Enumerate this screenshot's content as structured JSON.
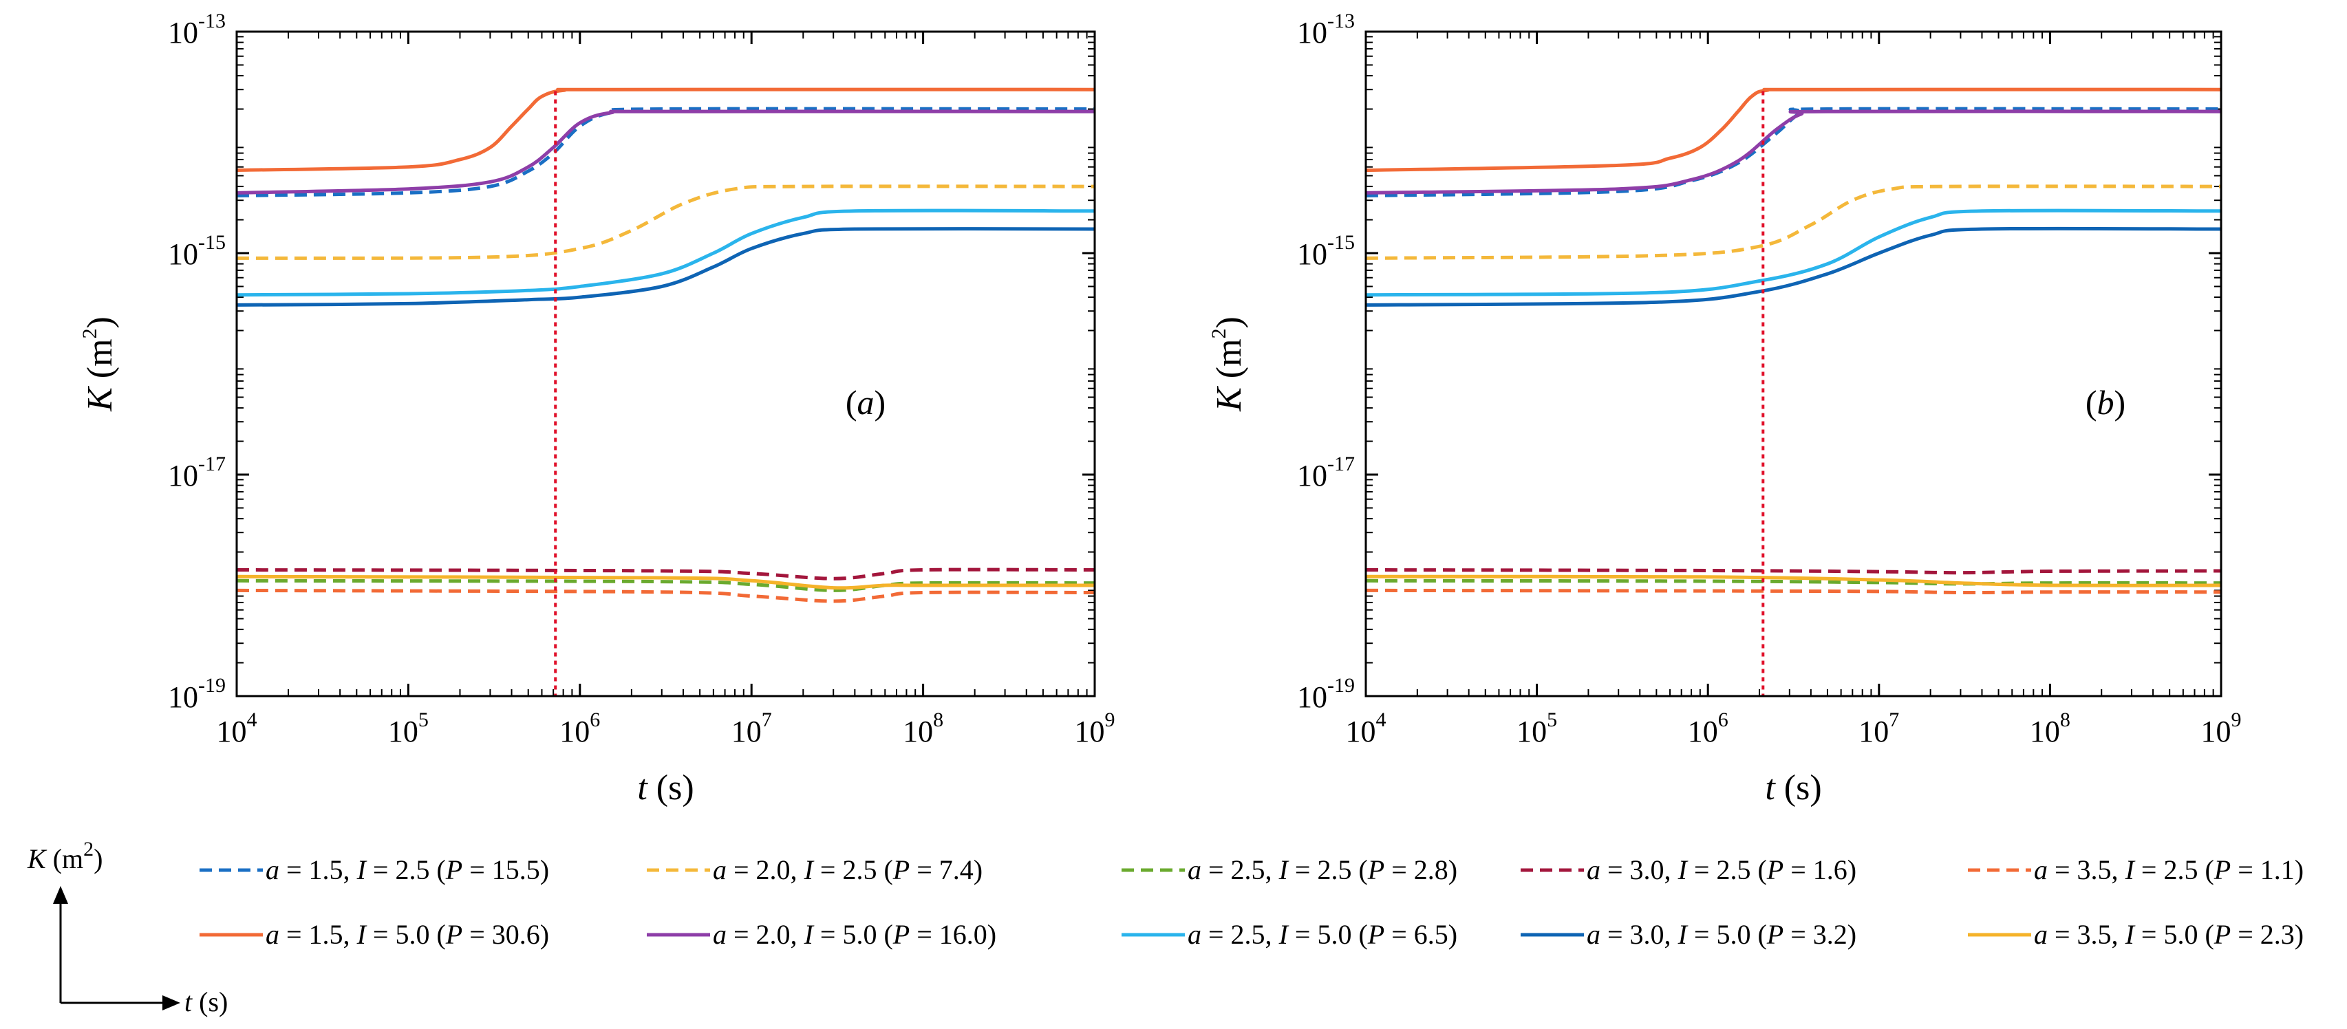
{
  "chart_data": [
    {
      "type": "line",
      "panel_label": "a",
      "xscale": "log",
      "yscale": "log",
      "xlim": [
        10000,
        1000000000
      ],
      "ylim": [
        1e-19,
        1e-13
      ],
      "xlabel": "t",
      "xlabel_unit": "(s)",
      "ylabel": "K",
      "ylabel_unit_open": "(m",
      "ylabel_unit_sup": "2",
      "ylabel_unit_close": ")",
      "x_ticks": [
        {
          "base": "10",
          "exp": "4"
        },
        {
          "base": "10",
          "exp": "5"
        },
        {
          "base": "10",
          "exp": "6"
        },
        {
          "base": "10",
          "exp": "7"
        },
        {
          "base": "10",
          "exp": "8"
        },
        {
          "base": "10",
          "exp": "9"
        }
      ],
      "y_ticks": [
        {
          "base": "10",
          "exp": "-19"
        },
        {
          "base": "10",
          "exp": "-17"
        },
        {
          "base": "10",
          "exp": "-15"
        },
        {
          "base": "10",
          "exp": "-13"
        }
      ],
      "vline_t": 720000,
      "series": [
        {
          "key": "a15_I25",
          "points": [
            [
              10000.0,
              3.3e-15
            ],
            [
              100000.0,
              3.5e-15
            ],
            [
              300000.0,
              4e-15
            ],
            [
              500000.0,
              5.5e-15
            ],
            [
              700000.0,
              8e-15
            ],
            [
              1000000.0,
              1.4e-14
            ],
            [
              1500000.0,
              1.85e-14
            ],
            [
              3000000.0,
              2e-14
            ],
            [
              1000000000.0,
              2e-14
            ]
          ]
        },
        {
          "key": "a20_I25",
          "points": [
            [
              10000.0,
              9e-16
            ],
            [
              300000.0,
              9.2e-16
            ],
            [
              1000000.0,
              1.1e-15
            ],
            [
              2000000.0,
              1.6e-15
            ],
            [
              4000000.0,
              2.8e-15
            ],
            [
              8000000.0,
              3.8e-15
            ],
            [
              20000000.0,
              4e-15
            ],
            [
              1000000000.0,
              4e-15
            ]
          ]
        },
        {
          "key": "a25_I25",
          "points": [
            [
              10000.0,
              1.1e-18
            ],
            [
              3000000.0,
              1.08e-18
            ],
            [
              10000000.0,
              1.02e-18
            ],
            [
              30000000.0,
              9e-19
            ],
            [
              60000000.0,
              1e-18
            ],
            [
              100000000.0,
              1.05e-18
            ],
            [
              1000000000.0,
              1.05e-18
            ]
          ]
        },
        {
          "key": "a30_I25",
          "points": [
            [
              10000.0,
              1.38e-18
            ],
            [
              3000000.0,
              1.35e-18
            ],
            [
              10000000.0,
              1.28e-18
            ],
            [
              30000000.0,
              1.15e-18
            ],
            [
              60000000.0,
              1.28e-18
            ],
            [
              100000000.0,
              1.38e-18
            ],
            [
              1000000000.0,
              1.38e-18
            ]
          ]
        },
        {
          "key": "a35_I25",
          "points": [
            [
              10000.0,
              9e-19
            ],
            [
              3000000.0,
              8.7e-19
            ],
            [
              10000000.0,
              8e-19
            ],
            [
              30000000.0,
              7.2e-19
            ],
            [
              60000000.0,
              8e-19
            ],
            [
              100000000.0,
              8.6e-19
            ],
            [
              1000000000.0,
              8.6e-19
            ]
          ]
        },
        {
          "key": "a15_I50",
          "points": [
            [
              10000.0,
              5.6e-15
            ],
            [
              100000.0,
              6e-15
            ],
            [
              200000.0,
              7e-15
            ],
            [
              300000.0,
              9e-15
            ],
            [
              400000.0,
              1.4e-14
            ],
            [
              500000.0,
              2e-14
            ],
            [
              600000.0,
              2.6e-14
            ],
            [
              800000.0,
              2.95e-14
            ],
            [
              1500000.0,
              3e-14
            ],
            [
              1000000000.0,
              3e-14
            ]
          ]
        },
        {
          "key": "a20_I50",
          "points": [
            [
              10000.0,
              3.5e-15
            ],
            [
              100000.0,
              3.8e-15
            ],
            [
              300000.0,
              4.4e-15
            ],
            [
              500000.0,
              6e-15
            ],
            [
              700000.0,
              9e-15
            ],
            [
              1000000.0,
              1.5e-14
            ],
            [
              1500000.0,
              1.85e-14
            ],
            [
              3000000.0,
              1.9e-14
            ],
            [
              1000000000.0,
              1.9e-14
            ]
          ]
        },
        {
          "key": "a25_I50",
          "points": [
            [
              10000.0,
              4.2e-16
            ],
            [
              100000.0,
              4.3e-16
            ],
            [
              500000.0,
              4.6e-16
            ],
            [
              1000000.0,
              5e-16
            ],
            [
              3000000.0,
              6.5e-16
            ],
            [
              6000000.0,
              1e-15
            ],
            [
              10000000.0,
              1.5e-15
            ],
            [
              20000000.0,
              2.1e-15
            ],
            [
              40000000.0,
              2.4e-15
            ],
            [
              1000000000.0,
              2.4e-15
            ]
          ]
        },
        {
          "key": "a30_I50",
          "points": [
            [
              10000.0,
              3.4e-16
            ],
            [
              100000.0,
              3.5e-16
            ],
            [
              500000.0,
              3.8e-16
            ],
            [
              1000000.0,
              4e-16
            ],
            [
              3000000.0,
              5e-16
            ],
            [
              6000000.0,
              7.5e-16
            ],
            [
              10000000.0,
              1.1e-15
            ],
            [
              20000000.0,
              1.5e-15
            ],
            [
              40000000.0,
              1.65e-15
            ],
            [
              1000000000.0,
              1.65e-15
            ]
          ]
        },
        {
          "key": "a35_I50",
          "points": [
            [
              10000.0,
              1.2e-18
            ],
            [
              3000000.0,
              1.17e-18
            ],
            [
              10000000.0,
              1.1e-18
            ],
            [
              30000000.0,
              9.5e-19
            ],
            [
              60000000.0,
              1e-18
            ],
            [
              100000000.0,
              1e-18
            ],
            [
              1000000000.0,
              1e-18
            ]
          ]
        }
      ]
    },
    {
      "type": "line",
      "panel_label": "b",
      "xscale": "log",
      "yscale": "log",
      "xlim": [
        10000,
        1000000000
      ],
      "ylim": [
        1e-19,
        1e-13
      ],
      "xlabel": "t",
      "xlabel_unit": "(s)",
      "ylabel": "K",
      "ylabel_unit_open": "(m",
      "ylabel_unit_sup": "2",
      "ylabel_unit_close": ")",
      "x_ticks": [
        {
          "base": "10",
          "exp": "4"
        },
        {
          "base": "10",
          "exp": "5"
        },
        {
          "base": "10",
          "exp": "6"
        },
        {
          "base": "10",
          "exp": "7"
        },
        {
          "base": "10",
          "exp": "8"
        },
        {
          "base": "10",
          "exp": "9"
        }
      ],
      "y_ticks": [
        {
          "base": "10",
          "exp": "-19"
        },
        {
          "base": "10",
          "exp": "-17"
        },
        {
          "base": "10",
          "exp": "-15"
        },
        {
          "base": "10",
          "exp": "-13"
        }
      ],
      "vline_t": 2100000,
      "series": [
        {
          "key": "a15_I25",
          "points": [
            [
              10000.0,
              3.3e-15
            ],
            [
              300000.0,
              3.6e-15
            ],
            [
              800000.0,
              4.5e-15
            ],
            [
              1500000.0,
              6.5e-15
            ],
            [
              2500000.0,
              1.2e-14
            ],
            [
              3500000.0,
              1.85e-14
            ],
            [
              5000000.0,
              2e-14
            ],
            [
              1000000000.0,
              2e-14
            ]
          ]
        },
        {
          "key": "a20_I25",
          "points": [
            [
              10000.0,
              9e-16
            ],
            [
              500000.0,
              9.5e-16
            ],
            [
              2000000.0,
              1.15e-15
            ],
            [
              4000000.0,
              1.8e-15
            ],
            [
              7000000.0,
              3e-15
            ],
            [
              12000000.0,
              3.8e-15
            ],
            [
              25000000.0,
              4e-15
            ],
            [
              1000000000.0,
              4e-15
            ]
          ]
        },
        {
          "key": "a25_I25",
          "points": [
            [
              10000.0,
              1.1e-18
            ],
            [
              1000000.0,
              1.09e-18
            ],
            [
              10000000.0,
              1.06e-18
            ],
            [
              30000000.0,
              1.03e-18
            ],
            [
              100000000.0,
              1.05e-18
            ],
            [
              1000000000.0,
              1.05e-18
            ]
          ]
        },
        {
          "key": "a30_I25",
          "points": [
            [
              10000.0,
              1.38e-18
            ],
            [
              1000000.0,
              1.36e-18
            ],
            [
              10000000.0,
              1.33e-18
            ],
            [
              30000000.0,
              1.3e-18
            ],
            [
              100000000.0,
              1.34e-18
            ],
            [
              1000000000.0,
              1.35e-18
            ]
          ]
        },
        {
          "key": "a35_I25",
          "points": [
            [
              10000.0,
              9e-19
            ],
            [
              1000000.0,
              8.9e-19
            ],
            [
              10000000.0,
              8.8e-19
            ],
            [
              30000000.0,
              8.6e-19
            ],
            [
              100000000.0,
              8.7e-19
            ],
            [
              1000000000.0,
              8.7e-19
            ]
          ]
        },
        {
          "key": "a15_I50",
          "points": [
            [
              10000.0,
              5.6e-15
            ],
            [
              300000.0,
              6.2e-15
            ],
            [
              600000.0,
              7.2e-15
            ],
            [
              900000.0,
              9e-15
            ],
            [
              1200000.0,
              1.3e-14
            ],
            [
              1500000.0,
              1.9e-14
            ],
            [
              1800000.0,
              2.6e-14
            ],
            [
              2200000.0,
              2.95e-14
            ],
            [
              4000000.0,
              3e-14
            ],
            [
              1000000000.0,
              3e-14
            ]
          ]
        },
        {
          "key": "a20_I50",
          "points": [
            [
              10000.0,
              3.5e-15
            ],
            [
              300000.0,
              3.8e-15
            ],
            [
              800000.0,
              4.6e-15
            ],
            [
              1500000.0,
              6.8e-15
            ],
            [
              2500000.0,
              1.3e-14
            ],
            [
              3500000.0,
              1.8e-14
            ],
            [
              5000000.0,
              1.9e-14
            ],
            [
              1000000000.0,
              1.9e-14
            ]
          ]
        },
        {
          "key": "a25_I50",
          "points": [
            [
              10000.0,
              4.2e-16
            ],
            [
              500000.0,
              4.4e-16
            ],
            [
              2000000.0,
              5.6e-16
            ],
            [
              5000000.0,
              8e-16
            ],
            [
              10000000.0,
              1.4e-15
            ],
            [
              20000000.0,
              2.1e-15
            ],
            [
              40000000.0,
              2.4e-15
            ],
            [
              1000000000.0,
              2.4e-15
            ]
          ]
        },
        {
          "key": "a30_I50",
          "points": [
            [
              10000.0,
              3.4e-16
            ],
            [
              500000.0,
              3.6e-16
            ],
            [
              2000000.0,
              4.5e-16
            ],
            [
              5000000.0,
              6.5e-16
            ],
            [
              10000000.0,
              1e-15
            ],
            [
              20000000.0,
              1.45e-15
            ],
            [
              40000000.0,
              1.65e-15
            ],
            [
              1000000000.0,
              1.65e-15
            ]
          ]
        },
        {
          "key": "a35_I50",
          "points": [
            [
              10000.0,
              1.2e-18
            ],
            [
              1000000.0,
              1.19e-18
            ],
            [
              10000000.0,
              1.12e-18
            ],
            [
              30000000.0,
              1.05e-18
            ],
            [
              100000000.0,
              1e-18
            ],
            [
              1000000000.0,
              1e-18
            ]
          ]
        }
      ]
    }
  ],
  "legend": [
    {
      "key": "a15_I25",
      "color": "#1a6fc4",
      "dash": true,
      "a": "1.5",
      "I": "2.5",
      "P": "15.5"
    },
    {
      "key": "a20_I25",
      "color": "#f4b83a",
      "dash": true,
      "a": "2.0",
      "I": "2.5",
      "P": "7.4"
    },
    {
      "key": "a25_I25",
      "color": "#6aaa2e",
      "dash": true,
      "a": "2.5",
      "I": "2.5",
      "P": "2.8"
    },
    {
      "key": "a30_I25",
      "color": "#a3163c",
      "dash": true,
      "a": "3.0",
      "I": "2.5",
      "P": "1.6"
    },
    {
      "key": "a35_I25",
      "color": "#f26a36",
      "dash": true,
      "a": "3.5",
      "I": "2.5",
      "P": "1.1"
    },
    {
      "key": "a15_I50",
      "color": "#f26a36",
      "dash": false,
      "a": "1.5",
      "I": "5.0",
      "P": "30.6"
    },
    {
      "key": "a20_I50",
      "color": "#8e3ea8",
      "dash": false,
      "a": "2.0",
      "I": "5.0",
      "P": "16.0"
    },
    {
      "key": "a25_I50",
      "color": "#2ab4ec",
      "dash": false,
      "a": "2.5",
      "I": "5.0",
      "P": "6.5"
    },
    {
      "key": "a30_I50",
      "color": "#0e64b4",
      "dash": false,
      "a": "3.0",
      "I": "5.0",
      "P": "3.2"
    },
    {
      "key": "a35_I50",
      "color": "#f5b32a",
      "dash": false,
      "a": "3.5",
      "I": "5.0",
      "P": "2.3"
    }
  ],
  "legend_text": {
    "a": "a",
    "eq": " = ",
    "comma": ", ",
    "I": "I",
    "open": " (",
    "P": "P",
    "close": ")"
  },
  "axes_hint": {
    "y_label": "K",
    "y_unit_open": " (m",
    "y_unit_sup": "2",
    "y_unit_close": ")",
    "x_label": "t",
    "x_unit": " (s)"
  },
  "vline_color": "#e0102a"
}
